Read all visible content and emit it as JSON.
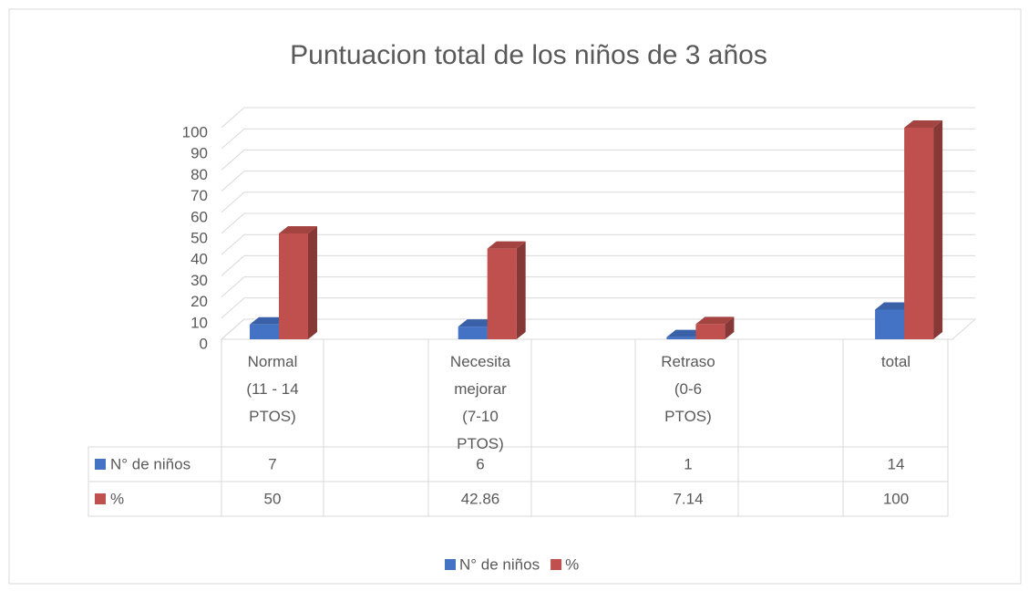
{
  "chart_data": {
    "type": "bar3d",
    "title": "Puntuacion total de los niños de 3 años",
    "categories": [
      "Normal (11 - 14 PTOS)",
      "Necesita mejorar (7-10 PTOS)",
      "Retraso (0-6 PTOS)",
      "total"
    ],
    "series": [
      {
        "name": "N° de niños",
        "color": "#4472c4",
        "values": [
          7,
          6,
          1,
          14
        ]
      },
      {
        "name": "%",
        "color": "#c0504d",
        "values": [
          50,
          42.86,
          7.14,
          100
        ]
      }
    ],
    "ylim": [
      0,
      100
    ],
    "yticks": [
      0,
      10,
      20,
      30,
      40,
      50,
      60,
      70,
      80,
      90,
      100
    ],
    "grid": true,
    "legend": "bottom",
    "data_table": true
  }
}
